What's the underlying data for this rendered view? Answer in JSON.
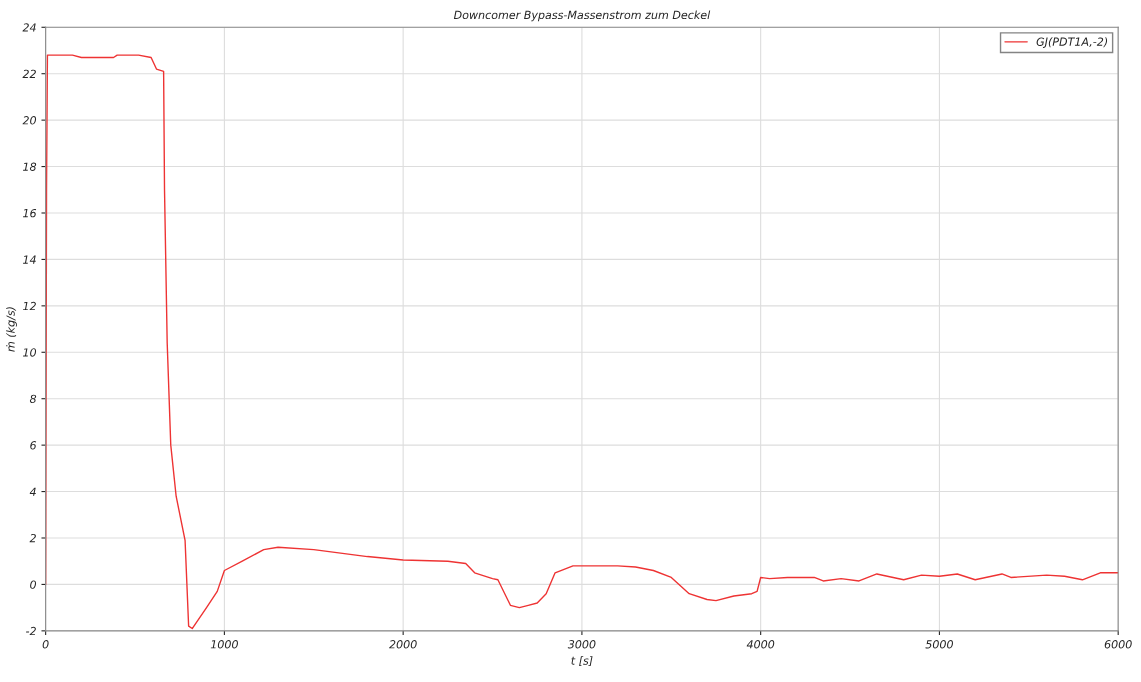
{
  "chart_data": {
    "type": "line",
    "title": "Downcomer Bypass-Massenstrom zum Deckel",
    "xlabel": "t [s]",
    "ylabel": "ṁ (kg/s)",
    "x": [
      0,
      5,
      10,
      150,
      200,
      380,
      400,
      520,
      590,
      620,
      660,
      665,
      680,
      700,
      730,
      780,
      800,
      820,
      900,
      960,
      1000,
      1100,
      1220,
      1300,
      1500,
      1800,
      2000,
      2250,
      2350,
      2400,
      2500,
      2530,
      2600,
      2650,
      2700,
      2750,
      2800,
      2850,
      2950,
      3200,
      3300,
      3400,
      3500,
      3600,
      3700,
      3750,
      3850,
      3950,
      3980,
      4000,
      4050,
      4150,
      4300,
      4350,
      4450,
      4550,
      4650,
      4800,
      4900,
      5000,
      5100,
      5200,
      5350,
      5400,
      5600,
      5700,
      5800,
      5900,
      6000
    ],
    "series": [
      {
        "name": "GJ(PDT1A,-2)",
        "color": "#ee3333",
        "values": [
          0,
          17,
          22.8,
          22.8,
          22.7,
          22.7,
          22.8,
          22.8,
          22.7,
          22.2,
          22.1,
          17,
          10.4,
          6,
          3.8,
          1.9,
          -1.8,
          -1.9,
          -1.0,
          -0.3,
          0.6,
          1.0,
          1.5,
          1.6,
          1.5,
          1.2,
          1.05,
          1.0,
          0.9,
          0.5,
          0.25,
          0.2,
          -0.9,
          -1.0,
          -0.9,
          -0.8,
          -0.4,
          0.5,
          0.8,
          0.8,
          0.75,
          0.6,
          0.3,
          -0.4,
          -0.65,
          -0.7,
          -0.5,
          -0.4,
          -0.3,
          0.3,
          0.25,
          0.3,
          0.3,
          0.15,
          0.25,
          0.15,
          0.45,
          0.2,
          0.4,
          0.35,
          0.45,
          0.2,
          0.45,
          0.3,
          0.4,
          0.35,
          0.2,
          0.5,
          0.5
        ]
      }
    ],
    "xlim": [
      0,
      6000
    ],
    "xticks": [
      0,
      1000,
      2000,
      3000,
      4000,
      5000,
      6000
    ],
    "ylim": [
      -2,
      24
    ],
    "yticks": [
      -2,
      0,
      2,
      4,
      6,
      8,
      10,
      12,
      14,
      16,
      18,
      20,
      22,
      24
    ],
    "grid": true,
    "legend": "top right",
    "marker": "none",
    "line_style": "solid"
  }
}
